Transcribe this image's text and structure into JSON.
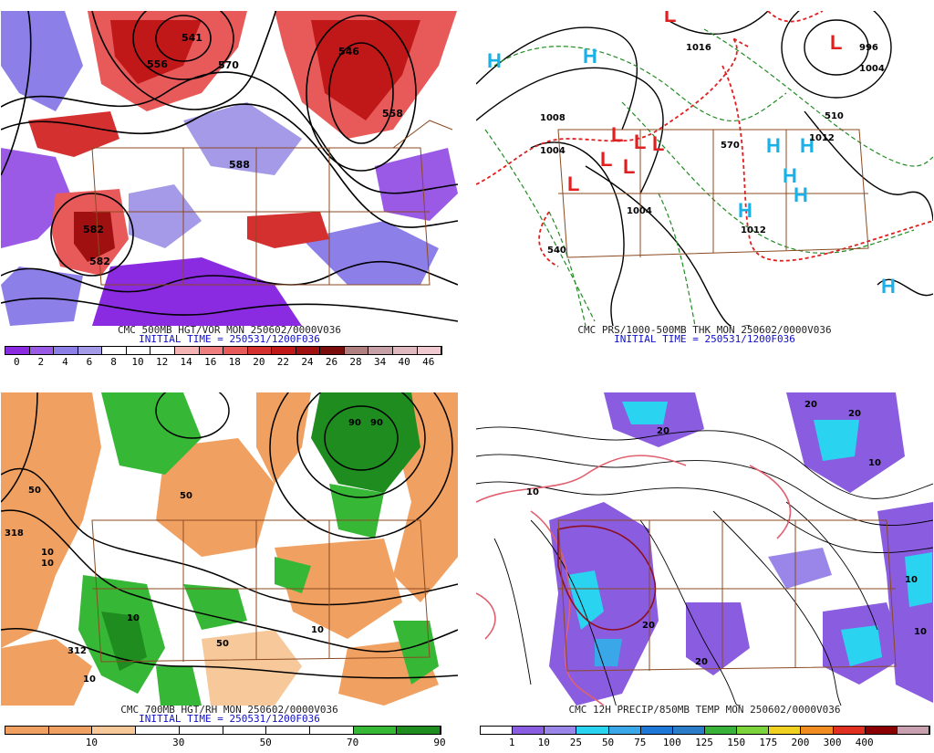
{
  "panels": {
    "top_left": {
      "caption": "CMC 500MB HGT/VOR MON 250602/0000V036",
      "initial": "INITIAL TIME = 250531/1200F036",
      "colorbar": {
        "colors": [
          "#8a2be2",
          "#9a5ae6",
          "#8c7fe8",
          "#a59ae8",
          "#ffffff",
          "#ffffff",
          "#ffffff",
          "#f5b4b4",
          "#ef7f7f",
          "#e85a5a",
          "#d43030",
          "#c01818",
          "#a01010",
          "#7a0c0c",
          "#b08080",
          "#c8a0a8",
          "#e0b8c0",
          "#f0c8d0"
        ],
        "labels": [
          "0",
          "2",
          "4",
          "6",
          "8",
          "10",
          "12",
          "14",
          "16",
          "18",
          "20",
          "22",
          "24",
          "26",
          "28",
          "34",
          "40",
          "46"
        ]
      },
      "contour_labels": [
        "541",
        "546",
        "558",
        "556",
        "570",
        "588",
        "582",
        "582"
      ]
    },
    "top_right": {
      "caption": "CMC PRS/1000-500MB THK MON 250602/0000V036",
      "initial": "INITIAL TIME = 250531/1200F036",
      "high_symbol": "H",
      "low_symbol": "L",
      "contour_labels": [
        "996",
        "1004",
        "1008",
        "1004",
        "1012",
        "570",
        "510",
        "540",
        "1004",
        "1012",
        "1016"
      ]
    },
    "bottom_left": {
      "caption": "CMC 700MB HGT/RH MON 250602/0000V036",
      "initial": "INITIAL TIME = 250531/1200F036",
      "colorbar": {
        "colors": [
          "#f0a060",
          "#f0a060",
          "#f7c89a",
          "#ffffff",
          "#ffffff",
          "#ffffff",
          "#ffffff",
          "#ffffff",
          "#36b836",
          "#1e8c1e"
        ],
        "labels": [
          "10",
          "30",
          "50",
          "70",
          "90"
        ]
      },
      "contour_labels": [
        "318",
        "312",
        "10",
        "10",
        "50",
        "50",
        "10",
        "90",
        "90",
        "10",
        "10",
        "50"
      ]
    },
    "bottom_right": {
      "caption": "CMC 12H PRECIP/850MB TEMP MON 250602/0000V036",
      "colorbar": {
        "colors": [
          "#ffffff",
          "#8a5ce0",
          "#9a86e8",
          "#2ad4f0",
          "#3aa8e8",
          "#1e78d8",
          "#2a7cc8",
          "#38b23a",
          "#7ad43a",
          "#f0d020",
          "#f08c20",
          "#e03020",
          "#8a0000",
          "#c8a0b0"
        ],
        "labels": [
          "1",
          "10",
          "25",
          "50",
          "75",
          "100",
          "125",
          "150",
          "175",
          "200",
          "300",
          "400"
        ]
      },
      "contour_labels": [
        "20",
        "20",
        "10",
        "20",
        "20",
        "10",
        "10",
        "20",
        "10"
      ]
    }
  }
}
